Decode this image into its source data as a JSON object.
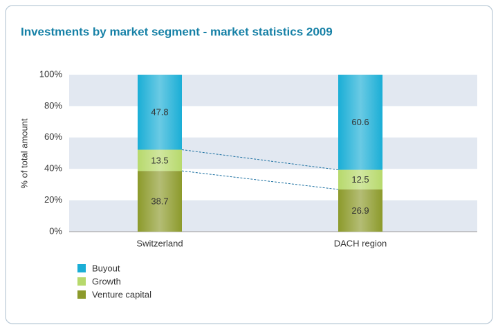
{
  "chart_data": {
    "type": "stacked_bar",
    "title": "Investments by market segment - market statistics 2009",
    "y_label": "% of total amount",
    "categories": [
      "Switzerland",
      "DACH region"
    ],
    "series": [
      {
        "name": "Venture capital",
        "color": "#8c9a2b",
        "values": [
          38.7,
          26.9
        ]
      },
      {
        "name": "Growth",
        "color": "#b7d96c",
        "values": [
          13.5,
          12.5
        ]
      },
      {
        "name": "Buyout",
        "color": "#1aaed6",
        "values": [
          47.8,
          60.6
        ]
      }
    ],
    "ylim": [
      0,
      100
    ],
    "yticks": [
      {
        "value": 0,
        "label": "0%"
      },
      {
        "value": 20,
        "label": "20%"
      },
      {
        "value": 40,
        "label": "40%"
      },
      {
        "value": 60,
        "label": "60%"
      },
      {
        "value": 80,
        "label": "80%"
      },
      {
        "value": 100,
        "label": "100%"
      }
    ],
    "legend": "bottom-left"
  }
}
